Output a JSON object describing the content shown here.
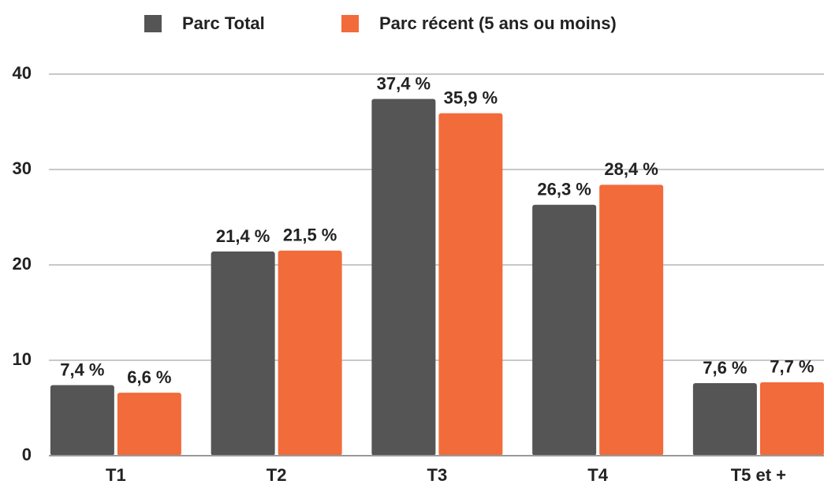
{
  "chart_data": {
    "type": "bar",
    "categories": [
      "T1",
      "T2",
      "T3",
      "T4",
      "T5 et +"
    ],
    "series": [
      {
        "name": "Parc Total",
        "color": "#555555",
        "values": [
          7.4,
          21.4,
          37.4,
          26.3,
          7.6
        ],
        "value_labels": [
          "7,4 %",
          "21,4 %",
          "37,4 %",
          "26,3 %",
          "7,6 %"
        ]
      },
      {
        "name": "Parc récent (5 ans ou moins)",
        "color": "#f26b3a",
        "values": [
          6.6,
          21.5,
          35.9,
          28.4,
          7.7
        ],
        "value_labels": [
          "6,6 %",
          "21,5 %",
          "35,9 %",
          "28,4 %",
          "7,7 %"
        ]
      }
    ],
    "ylim": [
      0,
      40
    ],
    "yticks": [
      0,
      10,
      20,
      30,
      40
    ],
    "grid": true,
    "legend": "top"
  }
}
